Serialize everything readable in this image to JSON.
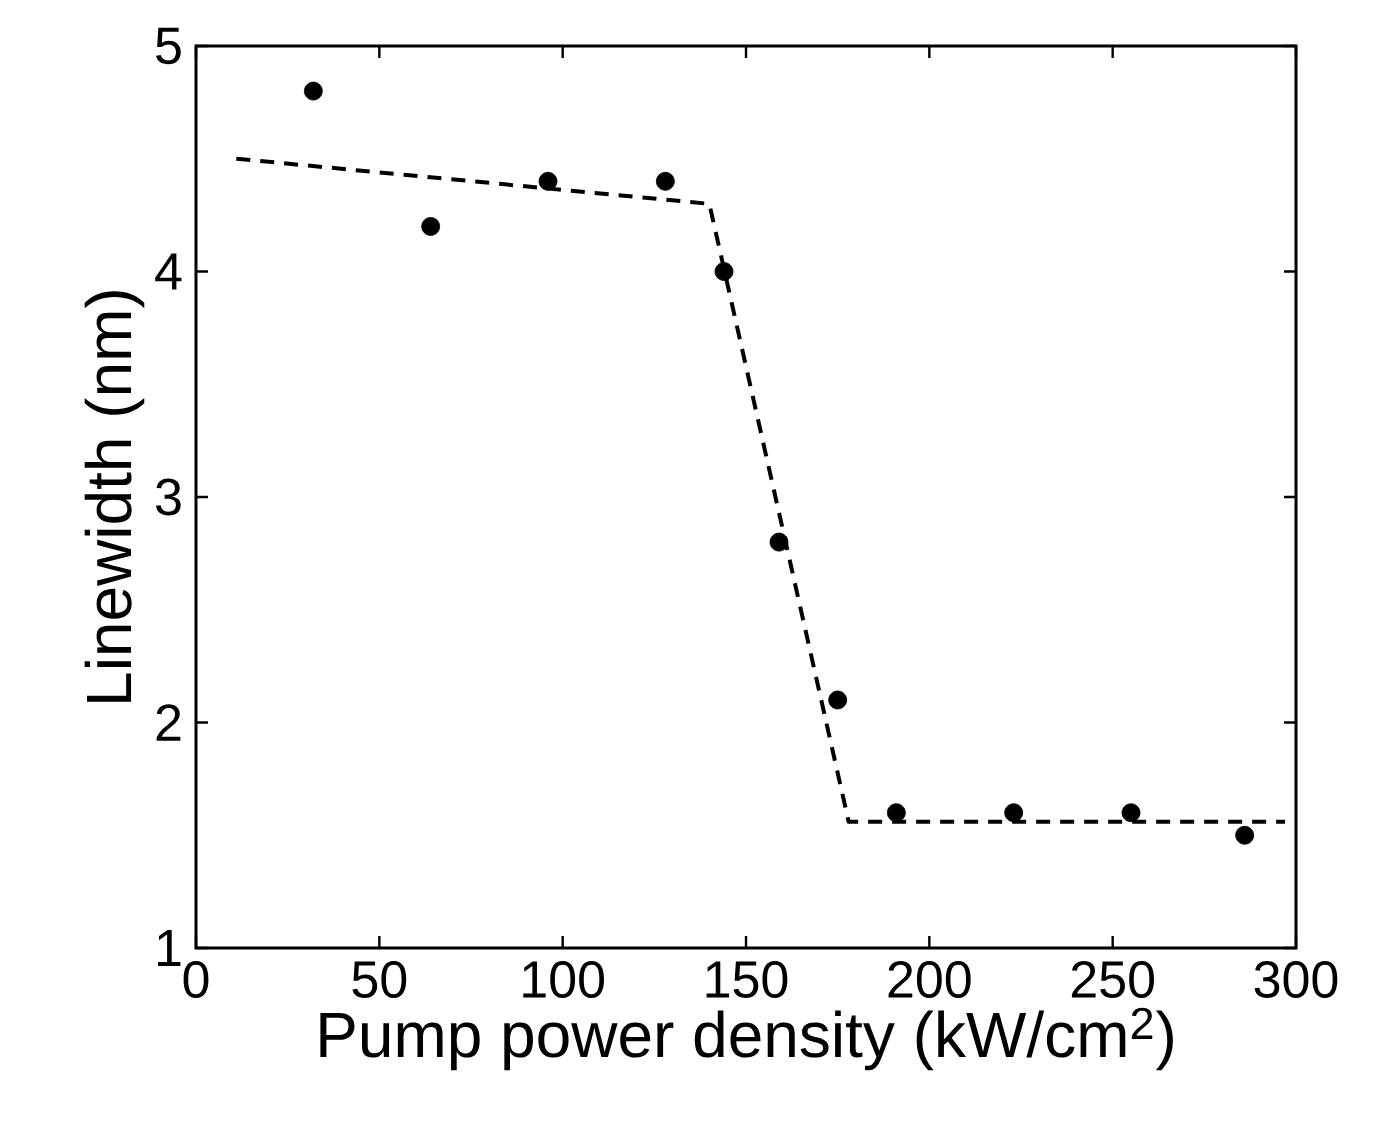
{
  "chart_data": {
    "type": "scatter",
    "xlabel": "Pump power density (kW/cm$^{2}$)",
    "ylabel": "Linewidth (nm)",
    "xlim": [
      0,
      300
    ],
    "ylim": [
      1,
      5
    ],
    "xticks": [
      0,
      50,
      100,
      150,
      200,
      250,
      300
    ],
    "yticks": [
      1,
      2,
      3,
      4,
      5
    ],
    "marker": "circle",
    "series": [
      {
        "color": "#000000",
        "x": [
          32,
          64,
          96,
          128,
          144,
          159,
          175,
          191,
          223,
          255,
          286
        ],
        "values": [
          4.8,
          4.2,
          4.4,
          4.4,
          4.0,
          2.8,
          2.1,
          1.6,
          1.6,
          1.6,
          1.5
        ]
      },
      {
        "type": "line",
        "marker": "none",
        "color": "#000000",
        "line_style": "dashed",
        "x": [
          11,
          140,
          178,
          297
        ],
        "values": [
          4.5,
          4.3,
          1.56,
          1.56
        ]
      }
    ]
  }
}
